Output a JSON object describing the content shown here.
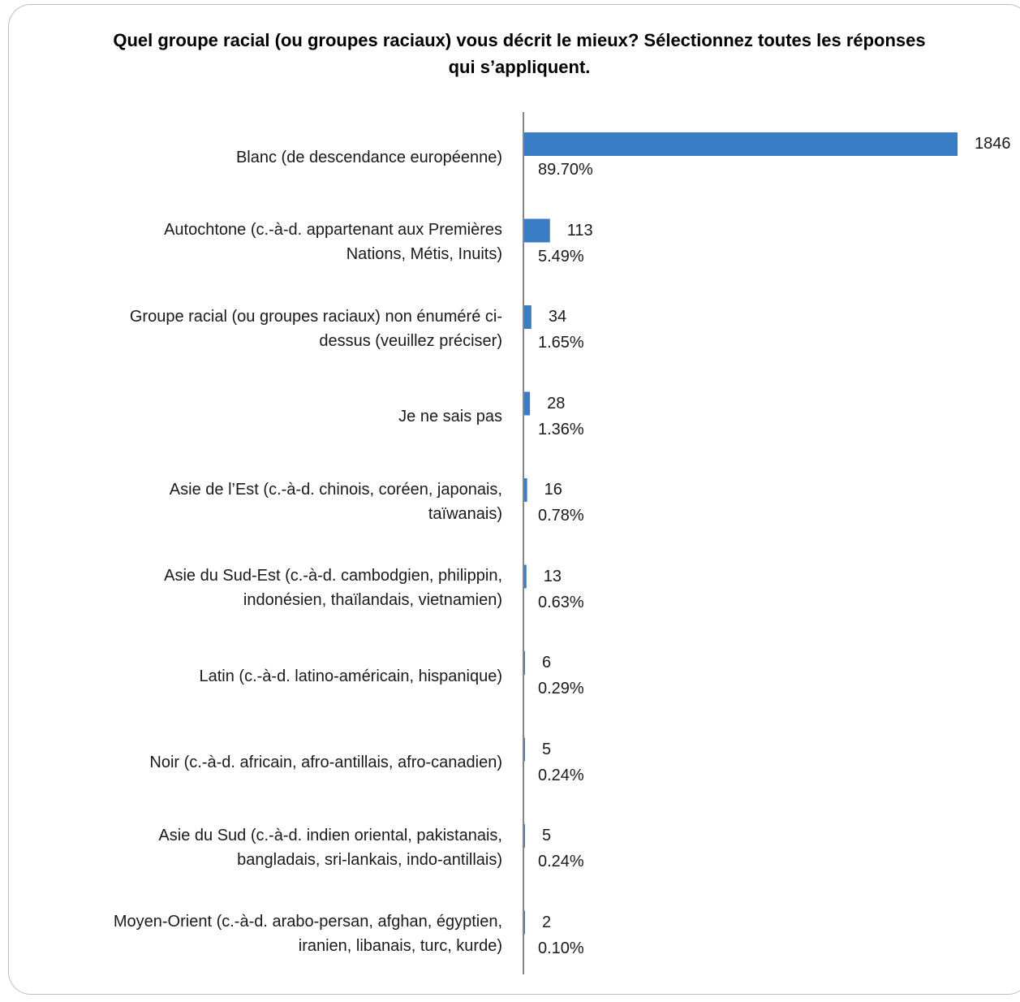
{
  "chart_data": {
    "type": "bar",
    "orientation": "horizontal",
    "title": "Quel groupe racial (ou groupes raciaux) vous décrit le mieux? Sélectionnez toutes les réponses qui s’appliquent.",
    "categories": [
      "Blanc (de descendance européenne)",
      "Autochtone (c.-à-d. appartenant aux Premières Nations, Métis, Inuits)",
      "Groupe racial (ou groupes raciaux) non énuméré ci-dessus (veuillez préciser)",
      "Je ne sais pas",
      "Asie de l’Est (c.-à-d. chinois, coréen, japonais, taïwanais)",
      "Asie du Sud-Est (c.-à-d. cambodgien, philippin, indonésien, thaïlandais, vietnamien)",
      "Latin (c.-à-d. latino-américain, hispanique)",
      "Noir (c.-à-d. africain, afro-antillais, afro-canadien)",
      "Asie du Sud (c.-à-d. indien oriental, pakistanais, bangladais, sri-lankais, indo-antillais)",
      "Moyen-Orient (c.-à-d. arabo-persan, afghan, égyptien, iranien, libanais, turc, kurde)"
    ],
    "label_lines": [
      [
        "Blanc (de descendance européenne)"
      ],
      [
        "Autochtone (c.-à-d. appartenant aux Premières",
        "Nations, Métis, Inuits)"
      ],
      [
        "Groupe racial (ou groupes raciaux) non énuméré ci-",
        "dessus (veuillez préciser)"
      ],
      [
        "Je ne sais pas"
      ],
      [
        "Asie de l’Est (c.-à-d. chinois, coréen, japonais,",
        "taïwanais)"
      ],
      [
        "Asie du Sud-Est (c.-à-d. cambodgien, philippin,",
        "indonésien, thaïlandais, vietnamien)"
      ],
      [
        "Latin (c.-à-d. latino-américain, hispanique)"
      ],
      [
        "Noir (c.-à-d. africain, afro-antillais, afro-canadien)"
      ],
      [
        "Asie du Sud (c.-à-d. indien oriental, pakistanais,",
        "bangladais, sri-lankais, indo-antillais)"
      ],
      [
        "Moyen-Orient (c.-à-d. arabo-persan, afghan, égyptien,",
        "iranien, libanais, turc, kurde)"
      ]
    ],
    "values": [
      1846,
      113,
      34,
      28,
      16,
      13,
      6,
      5,
      5,
      2
    ],
    "percent_labels": [
      "89.70%",
      "5.49%",
      "1.65%",
      "1.36%",
      "0.78%",
      "0.63%",
      "0.29%",
      "0.24%",
      "0.24%",
      "0.10%"
    ],
    "value_labels": [
      "1846",
      "113",
      "34",
      "28",
      "16",
      "13",
      "6",
      "5",
      "5",
      "2"
    ],
    "xlim": [
      0,
      1846
    ],
    "grid": false,
    "legend": "none",
    "colors": {
      "bar": "#3b7dc4",
      "axis": "#868686",
      "frame": "#bfbfbf"
    }
  }
}
